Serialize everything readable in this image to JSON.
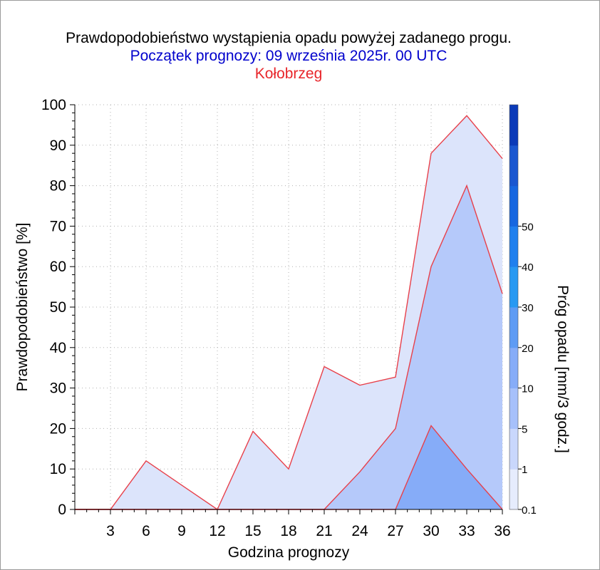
{
  "header": {
    "title": "Prawdopodobieństwo wystąpienia opadu powyżej zadanego progu.",
    "subtitle": "Początek prognozy: 09 września 2025r. 00 UTC",
    "location": "Kołobrzeg"
  },
  "chart_data": {
    "type": "area",
    "xlabel": "Godzina prognozy",
    "ylabel": "Prawdopodobieństwo [%]",
    "x": [
      0,
      3,
      6,
      9,
      12,
      15,
      18,
      21,
      24,
      27,
      30,
      33,
      36
    ],
    "x_ticks": [
      3,
      6,
      9,
      12,
      15,
      18,
      21,
      24,
      27,
      30,
      33,
      36
    ],
    "y_ticks": [
      0,
      10,
      20,
      30,
      40,
      50,
      60,
      70,
      80,
      90,
      100
    ],
    "xlim": [
      0,
      36
    ],
    "ylim": [
      0,
      100
    ],
    "grid": true,
    "series": [
      {
        "threshold": "0.1",
        "color": "#dce4fb",
        "values": [
          0,
          0,
          12,
          6,
          0,
          19.3,
          10,
          35.3,
          30.7,
          32.7,
          88,
          97.3,
          86.7
        ]
      },
      {
        "threshold": "1",
        "color": "#b5c9fa",
        "values": [
          0,
          0,
          0,
          0,
          0,
          0,
          0,
          0,
          9.3,
          20,
          60,
          80,
          53.3
        ]
      },
      {
        "threshold": "5",
        "color": "#86acf8",
        "values": [
          0,
          0,
          0,
          0,
          0,
          0,
          0,
          0,
          0,
          0,
          20.7,
          10,
          0
        ]
      }
    ],
    "colorbar": {
      "label": "Próg opadu [mm/3 godz.]",
      "labels": [
        "0.1",
        "1",
        "5",
        "10",
        "20",
        "30",
        "40",
        "50"
      ],
      "colors": [
        "#e6ecfd",
        "#c9d7fc",
        "#a6c0fb",
        "#86acf8",
        "#5e9bf4",
        "#2899f2",
        "#2080ee",
        "#1767e0",
        "#1a57d0",
        "#0b3ab8"
      ]
    }
  }
}
